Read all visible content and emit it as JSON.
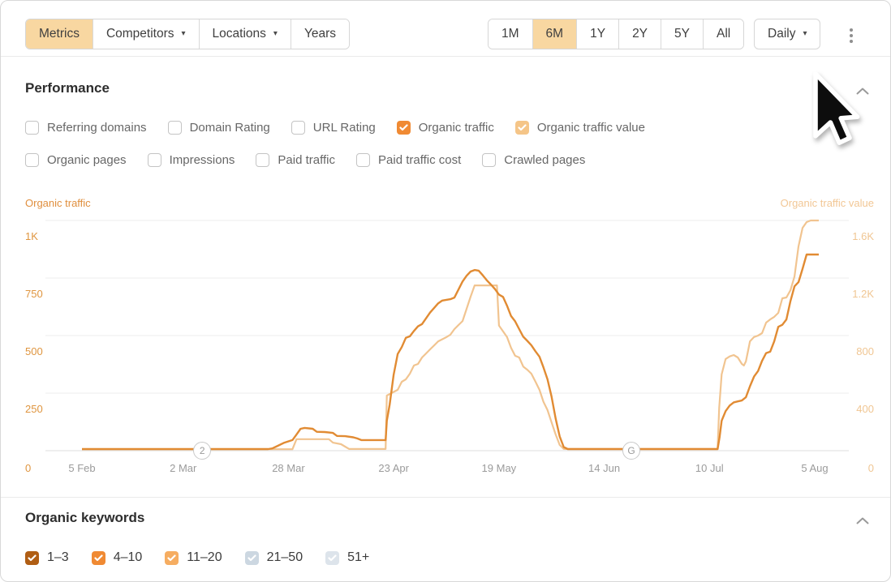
{
  "colors": {
    "accent_orange": "#f08a33",
    "active_tab_bg": "#f8d7a1",
    "traffic_line": "#e18b33",
    "value_line": "#f1c490",
    "grid": "#ececec",
    "axis_line": "#dcdcdc"
  },
  "toolbar": {
    "left_tabs": [
      {
        "label": "Metrics",
        "active": true,
        "caret": false
      },
      {
        "label": "Competitors",
        "active": false,
        "caret": true
      },
      {
        "label": "Locations",
        "active": false,
        "caret": true
      },
      {
        "label": "Years",
        "active": false,
        "caret": false
      }
    ],
    "range_tabs": [
      {
        "label": "1M",
        "active": false
      },
      {
        "label": "6M",
        "active": true
      },
      {
        "label": "1Y",
        "active": false
      },
      {
        "label": "2Y",
        "active": false
      },
      {
        "label": "5Y",
        "active": false
      },
      {
        "label": "All",
        "active": false
      }
    ],
    "granularity": {
      "label": "Daily",
      "caret": true
    },
    "more_menu": "kebab-menu"
  },
  "performance": {
    "title": "Performance",
    "metric_checkboxes_row1": [
      {
        "label": "Referring domains",
        "checked": false,
        "check_color": null
      },
      {
        "label": "Domain Rating",
        "checked": false,
        "check_color": null
      },
      {
        "label": "URL Rating",
        "checked": false,
        "check_color": null
      },
      {
        "label": "Organic traffic",
        "checked": true,
        "check_color": "#f08a33"
      },
      {
        "label": "Organic traffic value",
        "checked": true,
        "check_color": "#f5c588"
      }
    ],
    "metric_checkboxes_row2": [
      {
        "label": "Organic pages",
        "checked": false,
        "check_color": null
      },
      {
        "label": "Impressions",
        "checked": false,
        "check_color": null
      },
      {
        "label": "Paid traffic",
        "checked": false,
        "check_color": null
      },
      {
        "label": "Paid traffic cost",
        "checked": false,
        "check_color": null
      },
      {
        "label": "Crawled pages",
        "checked": false,
        "check_color": null
      }
    ]
  },
  "chart_data": {
    "type": "line",
    "title": "Performance",
    "x_axis": {
      "unit": "days since 5 Feb",
      "total_days": 182,
      "tick_days": [
        0,
        25,
        51,
        77,
        103,
        129,
        155,
        181
      ],
      "tick_labels": [
        "5 Feb",
        "2 Mar",
        "28 Mar",
        "23 Apr",
        "19 May",
        "14 Jun",
        "10 Jul",
        "5 Aug"
      ]
    },
    "left_axis": {
      "label": "Organic traffic",
      "tick_labels": [
        "1K",
        "750",
        "500",
        "250"
      ],
      "tick_values": [
        1000,
        750,
        500,
        250
      ],
      "zero_label": "0",
      "range": [
        0,
        1000
      ]
    },
    "right_axis": {
      "label": "Organic traffic value",
      "tick_labels": [
        "1.6K",
        "1.2K",
        "800",
        "400"
      ],
      "tick_values": [
        1600,
        1200,
        800,
        400
      ],
      "zero_label": "0",
      "range": [
        0,
        1600
      ]
    },
    "grid": true,
    "legend_position": "none",
    "series": [
      {
        "name": "Organic traffic value",
        "axis": "right",
        "color": "#f1c490",
        "points": [
          [
            0,
            10
          ],
          [
            52,
            10
          ],
          [
            53,
            80
          ],
          [
            61,
            80
          ],
          [
            62,
            56
          ],
          [
            64,
            45
          ],
          [
            65,
            28
          ],
          [
            66,
            12
          ],
          [
            75,
            12
          ],
          [
            75.3,
            383
          ],
          [
            76,
            394
          ],
          [
            78,
            423
          ],
          [
            79,
            479
          ],
          [
            80,
            496
          ],
          [
            81,
            535
          ],
          [
            82,
            592
          ],
          [
            83,
            603
          ],
          [
            84,
            648
          ],
          [
            85,
            676
          ],
          [
            86,
            704
          ],
          [
            87,
            732
          ],
          [
            88,
            760
          ],
          [
            90,
            789
          ],
          [
            91,
            806
          ],
          [
            92,
            845
          ],
          [
            93,
            873
          ],
          [
            94,
            901
          ],
          [
            95,
            986
          ],
          [
            96,
            1070
          ],
          [
            97,
            1149
          ],
          [
            102.5,
            1149
          ],
          [
            103,
            870
          ],
          [
            104,
            830
          ],
          [
            105,
            790
          ],
          [
            106,
            715
          ],
          [
            107,
            660
          ],
          [
            108,
            648
          ],
          [
            109,
            585
          ],
          [
            110,
            563
          ],
          [
            111,
            535
          ],
          [
            112,
            480
          ],
          [
            113,
            423
          ],
          [
            114,
            340
          ],
          [
            115,
            282
          ],
          [
            116,
            197
          ],
          [
            117,
            113
          ],
          [
            118,
            40
          ],
          [
            119,
            12
          ],
          [
            157,
            12
          ],
          [
            157.4,
            300
          ],
          [
            158,
            530
          ],
          [
            159,
            637
          ],
          [
            160,
            655
          ],
          [
            161,
            665
          ],
          [
            162,
            648
          ],
          [
            163,
            603
          ],
          [
            163.5,
            592
          ],
          [
            164,
            620
          ],
          [
            165,
            760
          ],
          [
            166,
            790
          ],
          [
            167,
            800
          ],
          [
            168,
            817
          ],
          [
            169,
            890
          ],
          [
            170,
            912
          ],
          [
            171,
            930
          ],
          [
            172,
            958
          ],
          [
            173,
            1059
          ],
          [
            174,
            1065
          ],
          [
            175,
            1115
          ],
          [
            176,
            1211
          ],
          [
            177,
            1420
          ],
          [
            178,
            1549
          ],
          [
            179,
            1589
          ],
          [
            180,
            1600
          ],
          [
            182,
            1600
          ]
        ]
      },
      {
        "name": "Organic traffic",
        "axis": "left",
        "color": "#e18b33",
        "points": [
          [
            0,
            7
          ],
          [
            46,
            7
          ],
          [
            47,
            10
          ],
          [
            48,
            18
          ],
          [
            50,
            35
          ],
          [
            52,
            46
          ],
          [
            53,
            70
          ],
          [
            54,
            95
          ],
          [
            55,
            99
          ],
          [
            57,
            95
          ],
          [
            58,
            82
          ],
          [
            60,
            81
          ],
          [
            62,
            77
          ],
          [
            63,
            64
          ],
          [
            65,
            63
          ],
          [
            67,
            58
          ],
          [
            68,
            53
          ],
          [
            69,
            46
          ],
          [
            75,
            46
          ],
          [
            75.3,
            130
          ],
          [
            76,
            200
          ],
          [
            77,
            330
          ],
          [
            78,
            420
          ],
          [
            79,
            450
          ],
          [
            80,
            490
          ],
          [
            81,
            497
          ],
          [
            82,
            520
          ],
          [
            83,
            540
          ],
          [
            84,
            550
          ],
          [
            86,
            600
          ],
          [
            88,
            640
          ],
          [
            89,
            652
          ],
          [
            91,
            658
          ],
          [
            92,
            665
          ],
          [
            93,
            700
          ],
          [
            94,
            735
          ],
          [
            95,
            760
          ],
          [
            96,
            778
          ],
          [
            97,
            785
          ],
          [
            98,
            782
          ],
          [
            99,
            762
          ],
          [
            100,
            740
          ],
          [
            101,
            722
          ],
          [
            102,
            702
          ],
          [
            103,
            678
          ],
          [
            104,
            668
          ],
          [
            105,
            630
          ],
          [
            106,
            585
          ],
          [
            107,
            562
          ],
          [
            108,
            528
          ],
          [
            109,
            495
          ],
          [
            110,
            477
          ],
          [
            111,
            458
          ],
          [
            112,
            432
          ],
          [
            113,
            408
          ],
          [
            114,
            362
          ],
          [
            115,
            310
          ],
          [
            116,
            235
          ],
          [
            117,
            140
          ],
          [
            118,
            62
          ],
          [
            119,
            16
          ],
          [
            120,
            7
          ],
          [
            157,
            7
          ],
          [
            157.5,
            60
          ],
          [
            158,
            130
          ],
          [
            159,
            172
          ],
          [
            160,
            196
          ],
          [
            161,
            210
          ],
          [
            162,
            214
          ],
          [
            163,
            218
          ],
          [
            164,
            232
          ],
          [
            165,
            280
          ],
          [
            166,
            322
          ],
          [
            167,
            346
          ],
          [
            168,
            390
          ],
          [
            169,
            424
          ],
          [
            170,
            430
          ],
          [
            171,
            475
          ],
          [
            172,
            538
          ],
          [
            173,
            547
          ],
          [
            174,
            570
          ],
          [
            175,
            650
          ],
          [
            176,
            714
          ],
          [
            177,
            732
          ],
          [
            178,
            790
          ],
          [
            179,
            852
          ],
          [
            182,
            852
          ]
        ]
      }
    ],
    "annotations": [
      {
        "label": "2",
        "day": 29.7
      },
      {
        "label": "G",
        "day": 135.7
      }
    ]
  },
  "organic_keywords": {
    "title": "Organic keywords",
    "position_checkboxes": [
      {
        "label": "1–3",
        "checked": true,
        "check_color": "#b05e14"
      },
      {
        "label": "4–10",
        "checked": true,
        "check_color": "#f08a33"
      },
      {
        "label": "11–20",
        "checked": true,
        "check_color": "#f6ad61"
      },
      {
        "label": "21–50",
        "checked": true,
        "check_color": "#ccd7e1"
      },
      {
        "label": "51+",
        "checked": true,
        "check_color": "#dde4eb"
      }
    ]
  }
}
